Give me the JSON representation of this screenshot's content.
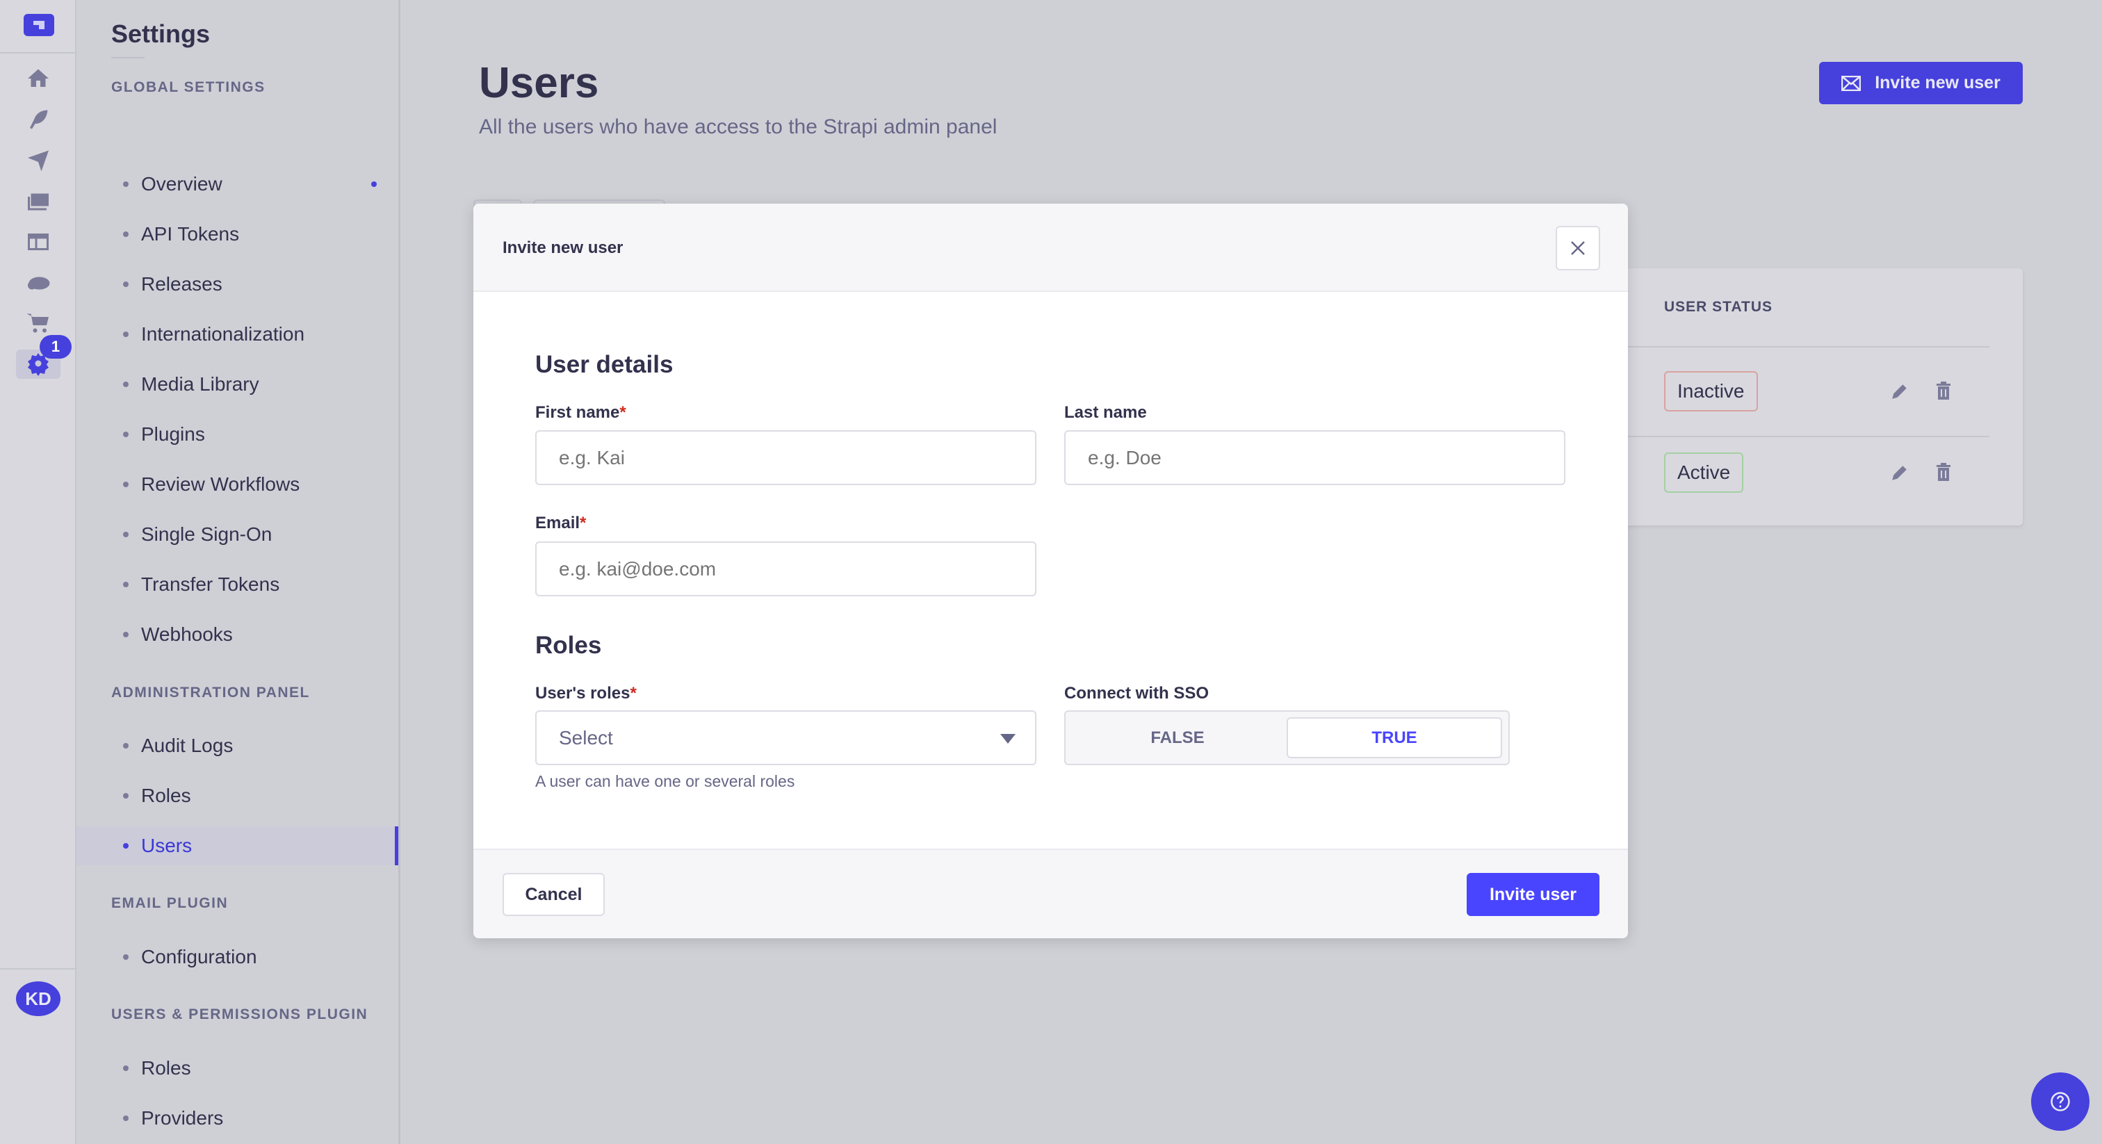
{
  "rail": {
    "icons": [
      "strapi-logo",
      "home-icon",
      "feather-icon",
      "send-icon",
      "media-icon",
      "layout-icon",
      "cloud-icon",
      "cart-icon",
      "gear-icon"
    ],
    "settings_badge": "1",
    "avatar": "KD"
  },
  "sidebar": {
    "title": "Settings",
    "sections": [
      {
        "label": "GLOBAL SETTINGS",
        "items": [
          "Overview",
          "API Tokens",
          "Releases",
          "Internationalization",
          "Media Library",
          "Plugins",
          "Review Workflows",
          "Single Sign-On",
          "Transfer Tokens",
          "Webhooks"
        ]
      },
      {
        "label": "ADMINISTRATION PANEL",
        "items": [
          "Audit Logs",
          "Roles",
          "Users"
        ]
      },
      {
        "label": "EMAIL PLUGIN",
        "items": [
          "Configuration"
        ]
      },
      {
        "label": "USERS & PERMISSIONS PLUGIN",
        "items": [
          "Roles",
          "Providers"
        ]
      }
    ],
    "active_item": "Users"
  },
  "page": {
    "title": "Users",
    "subtitle": "All the users who have access to the Strapi admin panel",
    "invite_button": "Invite new user"
  },
  "table": {
    "column": "USER STATUS",
    "rows": [
      {
        "status": "Inactive"
      },
      {
        "status": "Active"
      }
    ]
  },
  "modal": {
    "title": "Invite new user",
    "user_details_heading": "User details",
    "first_name": {
      "label": "First name",
      "placeholder": "e.g. Kai",
      "required": "*"
    },
    "last_name": {
      "label": "Last name",
      "placeholder": "e.g. Doe"
    },
    "email": {
      "label": "Email",
      "placeholder": "e.g. kai@doe.com",
      "required": "*"
    },
    "roles_heading": "Roles",
    "roles": {
      "label": "User's roles",
      "required": "*",
      "value": "Select",
      "hint": "A user can have one or several roles"
    },
    "sso": {
      "label": "Connect with SSO",
      "false_label": "FALSE",
      "true_label": "TRUE",
      "selected": "TRUE"
    },
    "cancel": "Cancel",
    "submit": "Invite user"
  },
  "colors": {
    "primary": "#4945ff",
    "inactive_border": "#d9a3a0",
    "active_border": "#a5d0a2"
  }
}
